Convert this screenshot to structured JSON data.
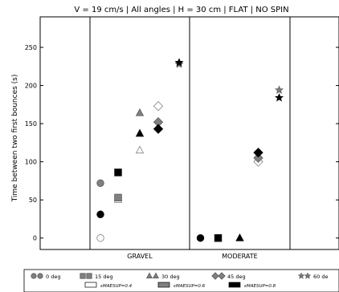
{
  "chart_data": {
    "type": "scatter",
    "title": "V = 19 cm/s | All angles | H = 30 cm | FLAT | NO SPIN",
    "xlabel": "",
    "ylabel": "Time between two first bounces (s)",
    "categories": [
      "GRAVEL",
      "MODERATE"
    ],
    "ylim": [
      -15,
      290
    ],
    "yticks": [
      0,
      50,
      100,
      150,
      200,
      250
    ],
    "grid": false,
    "legend_position": "bottom",
    "angle_legend": [
      {
        "label": "0 deg",
        "marker": "circle"
      },
      {
        "label": "15 deg",
        "marker": "square"
      },
      {
        "label": "30 deg",
        "marker": "triangle"
      },
      {
        "label": "45 deg",
        "marker": "diamond"
      },
      {
        "label": "60 de",
        "marker": "star"
      }
    ],
    "restitution_legend": [
      {
        "label": "εMAESUP=0.4",
        "fill": "#ffffff"
      },
      {
        "label": "εMAESUP=0.6",
        "fill": "#808080"
      },
      {
        "label": "εMAESUP=0.8",
        "fill": "#000000"
      }
    ],
    "points": [
      {
        "category": "GRAVEL",
        "angle": 0,
        "eps": 0.4,
        "y": 0
      },
      {
        "category": "GRAVEL",
        "angle": 0,
        "eps": 0.6,
        "y": 72
      },
      {
        "category": "GRAVEL",
        "angle": 0,
        "eps": 0.8,
        "y": 31
      },
      {
        "category": "GRAVEL",
        "angle": 15,
        "eps": 0.4,
        "y": 51
      },
      {
        "category": "GRAVEL",
        "angle": 15,
        "eps": 0.6,
        "y": 53
      },
      {
        "category": "GRAVEL",
        "angle": 15,
        "eps": 0.8,
        "y": 86
      },
      {
        "category": "GRAVEL",
        "angle": 30,
        "eps": 0.4,
        "y": 115
      },
      {
        "category": "GRAVEL",
        "angle": 30,
        "eps": 0.6,
        "y": 164
      },
      {
        "category": "GRAVEL",
        "angle": 30,
        "eps": 0.8,
        "y": 137
      },
      {
        "category": "GRAVEL",
        "angle": 45,
        "eps": 0.4,
        "y": 173
      },
      {
        "category": "GRAVEL",
        "angle": 45,
        "eps": 0.6,
        "y": 152
      },
      {
        "category": "GRAVEL",
        "angle": 45,
        "eps": 0.8,
        "y": 143
      },
      {
        "category": "GRAVEL",
        "angle": 60,
        "eps": 0.6,
        "y": 228
      },
      {
        "category": "GRAVEL",
        "angle": 60,
        "eps": 0.8,
        "y": 230
      },
      {
        "category": "MODERATE",
        "angle": 0,
        "eps": 0.8,
        "y": 0
      },
      {
        "category": "MODERATE",
        "angle": 15,
        "eps": 0.8,
        "y": 0
      },
      {
        "category": "MODERATE",
        "angle": 30,
        "eps": 0.8,
        "y": 0
      },
      {
        "category": "MODERATE",
        "angle": 45,
        "eps": 0.4,
        "y": 100
      },
      {
        "category": "MODERATE",
        "angle": 45,
        "eps": 0.6,
        "y": 105
      },
      {
        "category": "MODERATE",
        "angle": 45,
        "eps": 0.8,
        "y": 112
      },
      {
        "category": "MODERATE",
        "angle": 60,
        "eps": 0.6,
        "y": 194
      },
      {
        "category": "MODERATE",
        "angle": 60,
        "eps": 0.8,
        "y": 184
      }
    ]
  },
  "colors": {
    "eps_0.4": "#ffffff",
    "eps_0.6": "#808080",
    "eps_0.8": "#000000",
    "axis": "#000000"
  }
}
